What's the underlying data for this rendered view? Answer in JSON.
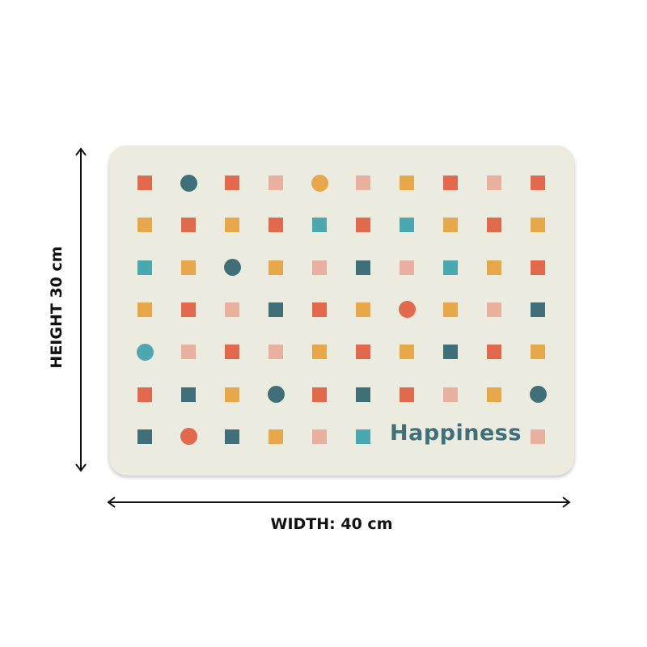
{
  "product": {
    "brand_text": "Happiness",
    "mat_color": "#ecebe0",
    "palette": {
      "R": "#e3694d",
      "D": "#3f6f78",
      "P": "#eab09f",
      "Y": "#e8a84a",
      "T": "#4aa8b1"
    },
    "pattern_rows": [
      [
        "Rs",
        "Dc",
        "Rs",
        "Ps",
        "Yc",
        "Ps",
        "Ys",
        "Rs",
        "Ps",
        "Rs"
      ],
      [
        "Ys",
        "Rs",
        "Ys",
        "Rs",
        "Ts",
        "Rs",
        "Ts",
        "Ys",
        "Rs",
        "Ys"
      ],
      [
        "Ts",
        "Ys",
        "Dc",
        "Ys",
        "Ps",
        "Ds",
        "Ps",
        "Ts",
        "Ys",
        "Rs"
      ],
      [
        "Ys",
        "Rs",
        "Ps",
        "Ds",
        "Rs",
        "Ys",
        "Rc",
        "Ys",
        "Ps",
        "Ds"
      ],
      [
        "Tc",
        "Ps",
        "Rs",
        "Ps",
        "Ys",
        "Rs",
        "Ys",
        "Ds",
        "Rs",
        "Ys"
      ],
      [
        "Rs",
        "Ds",
        "Ys",
        "Dc",
        "Rs",
        "Ds",
        "Rs",
        "Ps",
        "Ys",
        "Dc"
      ],
      [
        "Ds",
        "Rc",
        "Ds",
        "Ys",
        "Ps",
        "Ts",
        "",
        "",
        "",
        "Ps"
      ]
    ]
  },
  "dimensions": {
    "height_label": "HEIGHT 30 cm",
    "width_label": "WIDTH: 40 cm"
  }
}
